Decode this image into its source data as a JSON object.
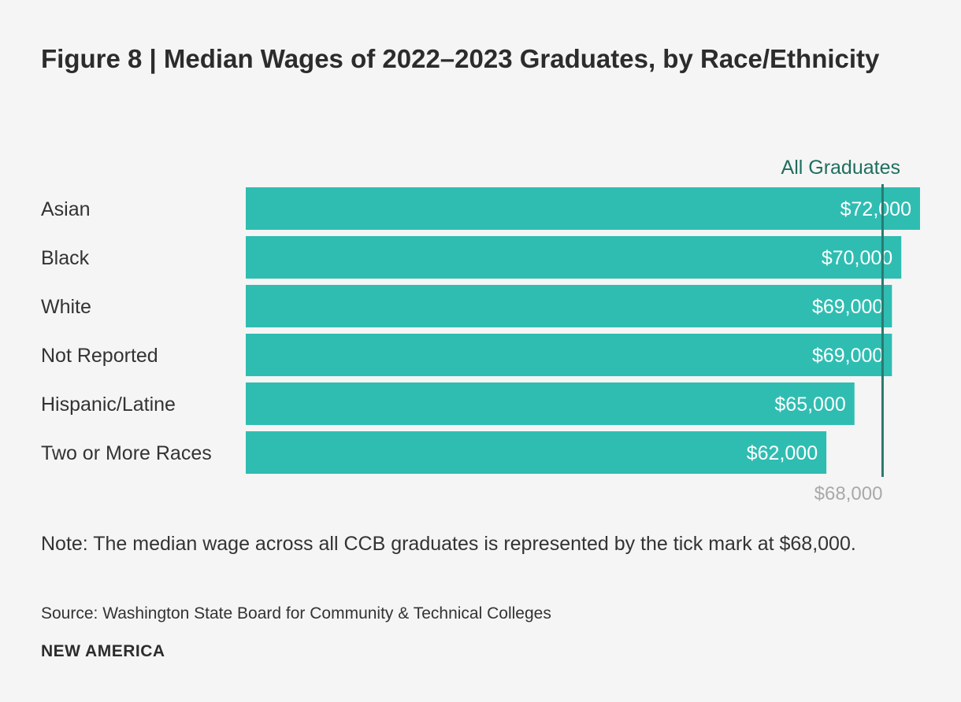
{
  "figure": {
    "title": "Figure 8 | Median Wages of 2022–2023 Graduates, by Race/Ethnicity",
    "note": "Note: The median wage across all CCB graduates is represented by the tick mark at $68,000.",
    "source": "Source: Washington State Board for Community & Technical Colleges",
    "brand": "NEW AMERICA"
  },
  "colors": {
    "bar": "#2fbdb2",
    "reference_line": "#2a7a6e",
    "reference_label": "#1f6e5f",
    "value_label": "#ffffff",
    "category_label": "#333333",
    "reference_value_label": "#a9a9a9"
  },
  "chart_data": {
    "type": "bar",
    "orientation": "horizontal",
    "title": "Figure 8 | Median Wages of 2022–2023 Graduates, by Race/Ethnicity",
    "xlabel": "",
    "ylabel": "",
    "xlim": [
      0,
      72000
    ],
    "grid": false,
    "categories": [
      "Asian",
      "Black",
      "White",
      "Not Reported",
      "Hispanic/Latine",
      "Two or More Races"
    ],
    "values": [
      72000,
      70000,
      69000,
      69000,
      65000,
      62000
    ],
    "value_labels": [
      "$72,000",
      "$70,000",
      "$69,000",
      "$69,000",
      "$65,000",
      "$62,000"
    ],
    "reference": {
      "name": "All Graduates",
      "value": 68000,
      "value_label": "$68,000"
    }
  }
}
